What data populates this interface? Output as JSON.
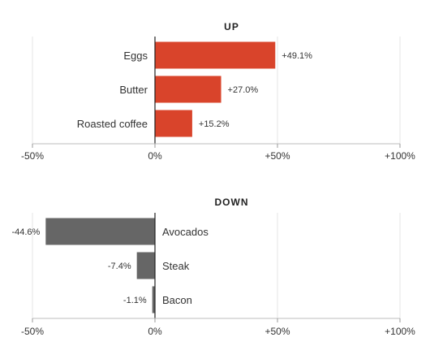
{
  "chart_data": [
    {
      "type": "bar",
      "orientation": "horizontal",
      "title": "UP",
      "categories": [
        "Eggs",
        "Butter",
        "Roasted coffee"
      ],
      "values": [
        49.1,
        27.0,
        15.2
      ],
      "value_labels": [
        "+49.1%",
        "+27.0%",
        "+15.2%"
      ],
      "color": "#d9442b",
      "xlim": [
        -50,
        100
      ],
      "xticks": [
        -50,
        0,
        50,
        100
      ],
      "xtick_labels": [
        "-50%",
        "0%",
        "+50%",
        "+100%"
      ],
      "grid": true
    },
    {
      "type": "bar",
      "orientation": "horizontal",
      "title": "DOWN",
      "categories": [
        "Avocados",
        "Steak",
        "Bacon"
      ],
      "values": [
        -44.6,
        -7.4,
        -1.1
      ],
      "value_labels": [
        "-44.6%",
        "-7.4%",
        "-1.1%"
      ],
      "color": "#666666",
      "xlim": [
        -50,
        100
      ],
      "xticks": [
        -50,
        0,
        50,
        100
      ],
      "xtick_labels": [
        "-50%",
        "0%",
        "+50%",
        "+100%"
      ],
      "grid": true
    }
  ]
}
